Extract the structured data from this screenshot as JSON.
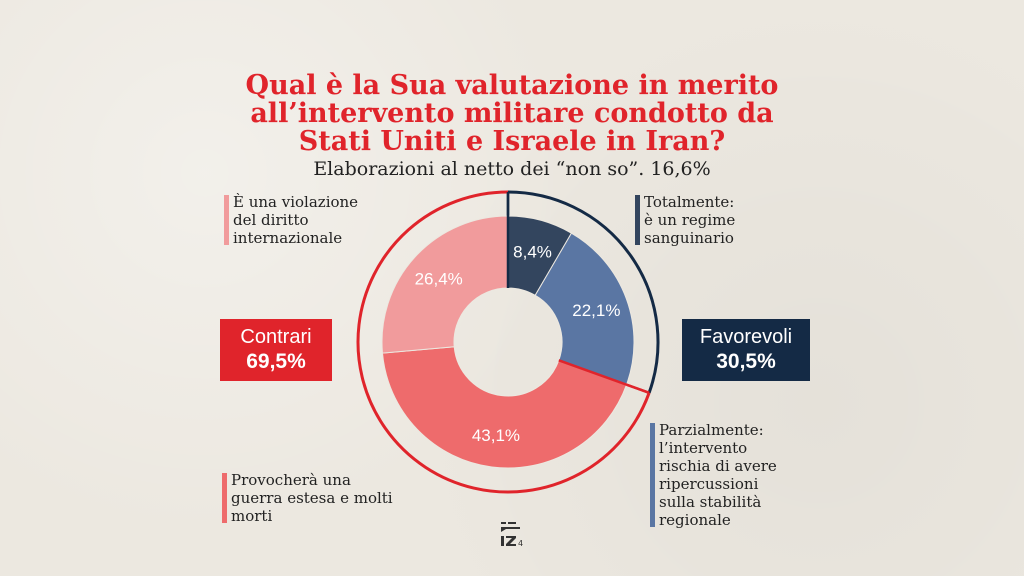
{
  "title": {
    "line1": "Qual è la Sua valutazione in merito",
    "line2": "all’intervento militare condotto da",
    "line3": "Stati Uniti e Israele in Iran?"
  },
  "subtitle": "Elaborazioni al netto dei “non so”. 16,6%",
  "groups": {
    "contrari": {
      "label": "Contrari",
      "value": "69,5%",
      "color": "#e0242b"
    },
    "favorevoli": {
      "label": "Favorevoli",
      "value": "30,5%",
      "color": "#142a45"
    }
  },
  "notes": {
    "violazione": "È una violazione\ndel diritto\ninternazionale",
    "regime": "Totalmente:\nè un regime\nsanguinario",
    "guerra": "Provocherà una\nguerra estesa e molti\nmorti",
    "parzialmente": "Parzialmente:\nl’intervento\nrischia di avere\nripercussioni\nsulla stabilità\nregionale"
  },
  "chart_data": {
    "type": "pie",
    "variant": "donut",
    "title": "Qual è la Sua valutazione in merito all’intervento militare condotto da Stati Uniti e Israele in Iran?",
    "subtitle": "Elaborazioni al netto dei “non so”. 16,6%",
    "slices": [
      {
        "name": "Totalmente: è un regime sanguinario",
        "value": 8.4,
        "label": "8,4%",
        "color": "#33455e",
        "group": "favorevoli"
      },
      {
        "name": "Parzialmente: l’intervento rischia di avere ripercussioni sulla stabilità regionale",
        "value": 22.1,
        "label": "22,1%",
        "color": "#5a76a3",
        "group": "favorevoli"
      },
      {
        "name": "Provocherà una guerra estesa e molti morti",
        "value": 43.1,
        "label": "43,1%",
        "color": "#ee6b6c",
        "group": "contrari"
      },
      {
        "name": "È una violazione del diritto internazionale",
        "value": 26.4,
        "label": "26,4%",
        "color": "#f19b9c",
        "group": "contrari"
      }
    ],
    "groups": [
      {
        "name": "Favorevoli",
        "value": 30.5,
        "label": "30,5%",
        "color": "#142a45"
      },
      {
        "name": "Contrari",
        "value": 69.5,
        "label": "69,5%",
        "color": "#e0242b"
      }
    ]
  }
}
